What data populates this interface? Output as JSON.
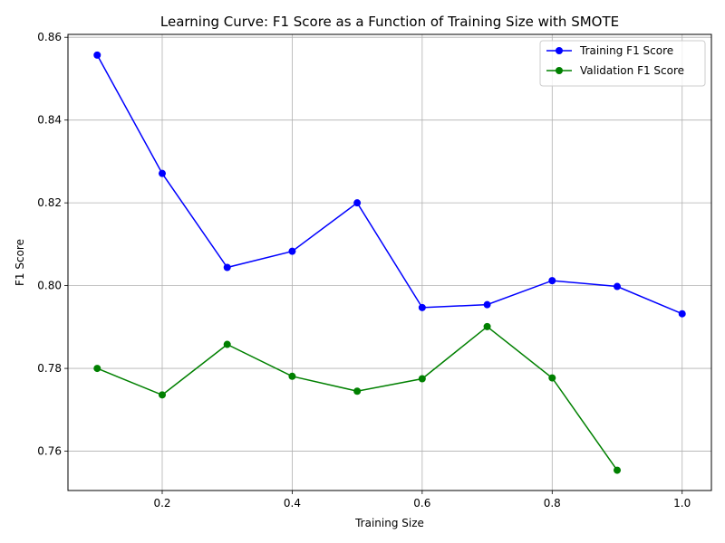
{
  "chart_data": {
    "type": "line",
    "title": "Learning Curve: F1 Score as a Function of Training Size with SMOTE",
    "xlabel": "Training Size",
    "ylabel": "F1 Score",
    "xlim": [
      0.055,
      1.045
    ],
    "ylim": [
      0.7505,
      0.8607
    ],
    "xticks": [
      0.2,
      0.4,
      0.6,
      0.8,
      1.0
    ],
    "xtick_labels": [
      "0.2",
      "0.4",
      "0.6",
      "0.8",
      "1.0"
    ],
    "yticks": [
      0.76,
      0.78,
      0.8,
      0.82,
      0.84,
      0.86
    ],
    "ytick_labels": [
      "0.76",
      "0.78",
      "0.80",
      "0.82",
      "0.84",
      "0.86"
    ],
    "grid": true,
    "legend_position": "top-right",
    "series": [
      {
        "name": "Training F1 Score",
        "color": "#0000ff",
        "marker": "circle",
        "x": [
          0.1,
          0.2,
          0.3,
          0.4,
          0.5,
          0.6,
          0.7,
          0.8,
          0.9,
          1.0
        ],
        "y": [
          0.8557,
          0.8271,
          0.8044,
          0.8083,
          0.82,
          0.7947,
          0.7954,
          0.8012,
          0.7998,
          0.7932
        ]
      },
      {
        "name": "Validation F1 Score",
        "color": "#008000",
        "marker": "circle",
        "x": [
          0.1,
          0.2,
          0.3,
          0.4,
          0.5,
          0.6,
          0.7,
          0.8,
          0.9
        ],
        "y": [
          0.78,
          0.7736,
          0.7858,
          0.7781,
          0.7745,
          0.7775,
          0.7901,
          0.7777,
          0.7554
        ]
      }
    ]
  }
}
